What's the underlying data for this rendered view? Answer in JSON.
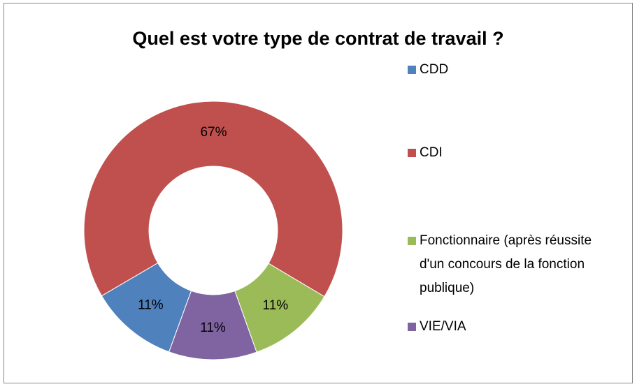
{
  "chart_data": {
    "type": "donut",
    "title": "Quel est votre type de contrat de travail ?",
    "categories": [
      "CDD",
      "CDI",
      "Fonctionnaire (après réussite d'un concours de la fonction publique)",
      "VIE/VIA"
    ],
    "values": [
      11,
      67,
      11,
      11
    ],
    "value_labels": [
      "11%",
      "67%",
      "11%",
      "11%"
    ],
    "colors": [
      "#4f81bd",
      "#c0504d",
      "#9bbb59",
      "#8064a2"
    ],
    "legend": "right"
  }
}
